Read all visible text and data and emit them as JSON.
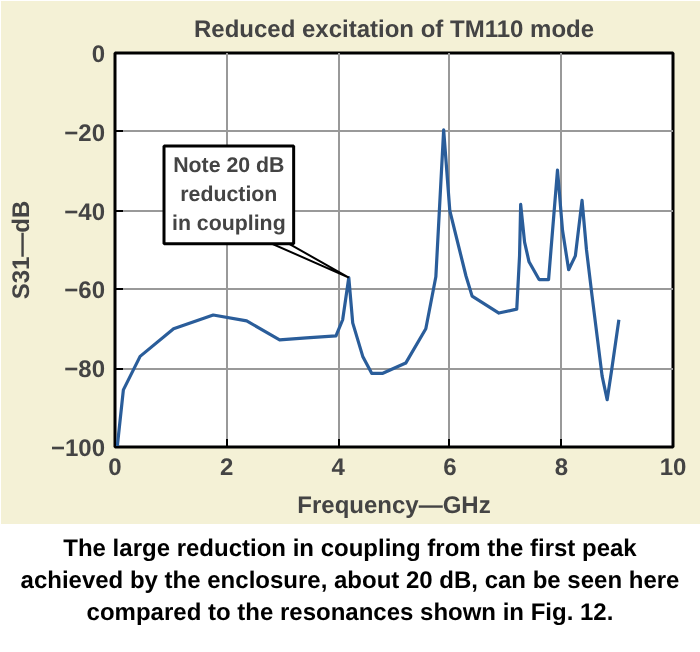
{
  "chart_data": {
    "type": "line",
    "title": "Reduced excitation of TM110 mode",
    "xlabel": "Frequency—GHz",
    "ylabel": "S31—dB",
    "xlim": [
      0,
      10
    ],
    "xticks": [
      0,
      2,
      4,
      6,
      8,
      10
    ],
    "ylim": [
      -100,
      0
    ],
    "yticks": [
      -100,
      -80,
      -60,
      -40,
      -20,
      0
    ],
    "grid": true,
    "series": [
      {
        "color": "#2a5d9a",
        "x": [
          0.04,
          0.15,
          0.45,
          1.05,
          1.76,
          2.36,
          2.95,
          3.43,
          3.96,
          4.08,
          4.19,
          4.26,
          4.44,
          4.6,
          4.8,
          5.21,
          5.57,
          5.75,
          5.89,
          6.0,
          6.29,
          6.4,
          6.88,
          7.2,
          7.25,
          7.27,
          7.34,
          7.42,
          7.6,
          7.77,
          7.93,
          8.02,
          8.13,
          8.25,
          8.37,
          8.45,
          8.55,
          8.73,
          8.82,
          8.9,
          9.03
        ],
        "values": [
          -100,
          -85.5,
          -77,
          -70,
          -66.5,
          -68,
          -72.8,
          -72.3,
          -71.8,
          -67.7,
          -57,
          -68.5,
          -77,
          -81.3,
          -81.3,
          -78.7,
          -70,
          -56.8,
          -19.5,
          -40,
          -56.6,
          -61.7,
          -66,
          -65,
          -51.5,
          -38.4,
          -48,
          -53,
          -57.5,
          -57.5,
          -29.7,
          -45,
          -55,
          -51.5,
          -37.4,
          -50,
          -61.7,
          -82,
          -88,
          -80.5,
          -67.7
        ]
      }
    ],
    "annotations": [
      {
        "text": "Note 20 dB\nreduction\nin coupling",
        "x": 4.19,
        "y": -57
      },
      "The large reduction in coupling from the first peak achieved by the enclosure, about 20 dB, can be seen here compared to the resonances shown in Fig. 12."
    ]
  }
}
